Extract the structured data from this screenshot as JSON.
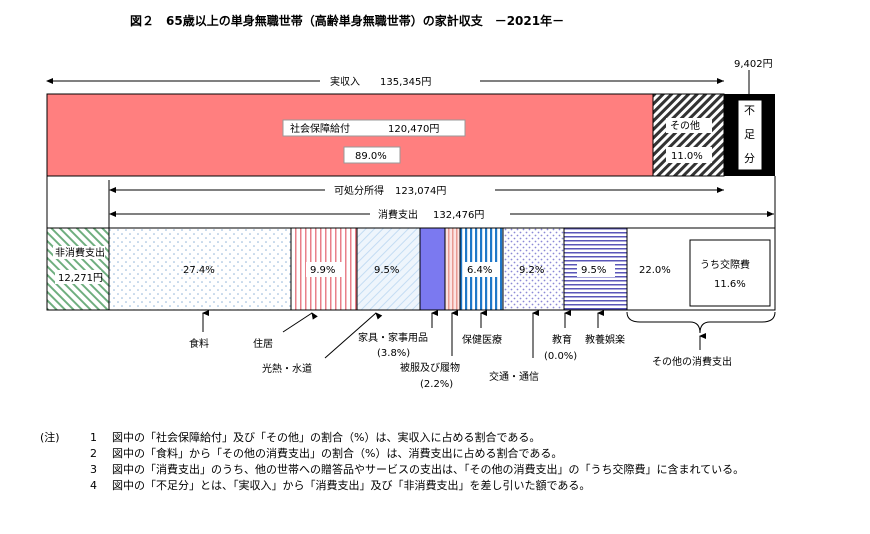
{
  "title": "図２　65歳以上の単身無職世帯（高齢単身無職世帯）の家計収支　－2021年－",
  "chart_data": {
    "type": "bar",
    "top_bar": {
      "label": "実収入",
      "value_text": "135,345円",
      "segments": [
        {
          "label": "社会保障給付",
          "value_text": "120,470円",
          "share": 89.0,
          "share_text": "89.0%",
          "color": "#ff7f7f"
        },
        {
          "label": "その他",
          "share": 11.0,
          "share_text": "11.0%",
          "color": "#d9d9d9"
        },
        {
          "label": "不足分",
          "value_text": "9,402円",
          "color": "#000000"
        }
      ]
    },
    "disposable_income": {
      "label": "可処分所得",
      "value_text": "123,074円"
    },
    "consumption": {
      "label": "消費支出",
      "value_text": "132,476円"
    },
    "non_consumption": {
      "label": "非消費支出",
      "value_text": "12,271円"
    },
    "bottom_bar": [
      {
        "label": "食料",
        "share": 27.4,
        "share_text": "27.4%"
      },
      {
        "label": "住居",
        "share": 9.9,
        "share_text": "9.9%"
      },
      {
        "label": "光熱・水道",
        "share": 9.5,
        "share_text": "9.5%"
      },
      {
        "label": "家具・家事用品",
        "share": 3.8,
        "share_text": "(3.8%)"
      },
      {
        "label": "被服及び履物",
        "share": 2.2,
        "share_text": "(2.2%)"
      },
      {
        "label": "保健医療",
        "share": 6.4,
        "share_text": "6.4%"
      },
      {
        "label": "交通・通信",
        "share": 9.2,
        "share_text": "9.2%"
      },
      {
        "label": "教育",
        "share": 0.0,
        "share_text": "(0.0%)"
      },
      {
        "label": "教養娯楽",
        "share": 9.5,
        "share_text": "9.5%"
      },
      {
        "label": "その他の消費支出",
        "share": 22.0,
        "share_text": "22.0%"
      }
    ],
    "sub_item": {
      "label": "うち交際費",
      "share": 11.6,
      "share_text": "11.6%"
    }
  },
  "notes": {
    "heading": "(注)",
    "items": [
      {
        "num": "1",
        "text": "図中の「社会保障給付」及び「その他」の割合（%）は、実収入に占める割合である。"
      },
      {
        "num": "2",
        "text": "図中の「食料」から「その他の消費支出」の割合（%）は、消費支出に占める割合である。"
      },
      {
        "num": "3",
        "text": "図中の「消費支出」のうち、他の世帯への贈答品やサービスの支出は、「その他の消費支出」の「うち交際費」に含まれている。"
      },
      {
        "num": "4",
        "text": "図中の「不足分」とは、「実収入」から「消費支出」及び「非消費支出」を差し引いた額である。"
      }
    ]
  }
}
